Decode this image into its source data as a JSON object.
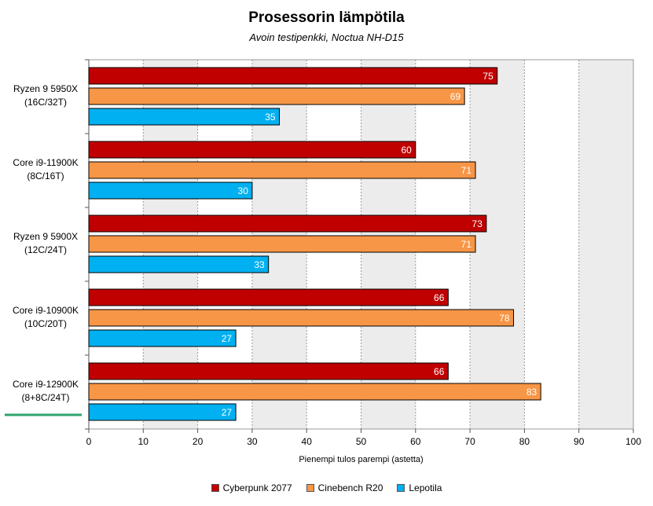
{
  "chart_data": {
    "type": "bar",
    "orientation": "horizontal",
    "title": "Prosessorin lämpötila",
    "subtitle": "Avoin testipenkki, Noctua NH-D15",
    "xlabel": "Pienempi tulos parempi (astetta)",
    "xlim": [
      0,
      100
    ],
    "xticks": [
      0,
      10,
      20,
      30,
      40,
      50,
      60,
      70,
      80,
      90,
      100
    ],
    "grid": true,
    "legend_position": "bottom",
    "categories": [
      [
        "Ryzen 9 5950X",
        "(16C/32T)"
      ],
      [
        "Core i9-11900K",
        "(8C/16T)"
      ],
      [
        "Ryzen 9 5900X",
        "(12C/24T)"
      ],
      [
        "Core i9-10900K",
        "(10C/20T)"
      ],
      [
        "Core i9-12900K",
        "(8+8C/24T)"
      ]
    ],
    "highlighted_category": 4,
    "series": [
      {
        "name": "Cyberpunk 2077",
        "color": "#c00000",
        "values": [
          75,
          60,
          73,
          66,
          66
        ]
      },
      {
        "name": "Cinebench R20",
        "color": "#f79646",
        "values": [
          69,
          71,
          71,
          78,
          83
        ]
      },
      {
        "name": "Lepotila",
        "color": "#00b0f0",
        "values": [
          35,
          30,
          33,
          27,
          27
        ]
      }
    ]
  },
  "colors": {
    "highlight_marker": "#2ca36b"
  }
}
